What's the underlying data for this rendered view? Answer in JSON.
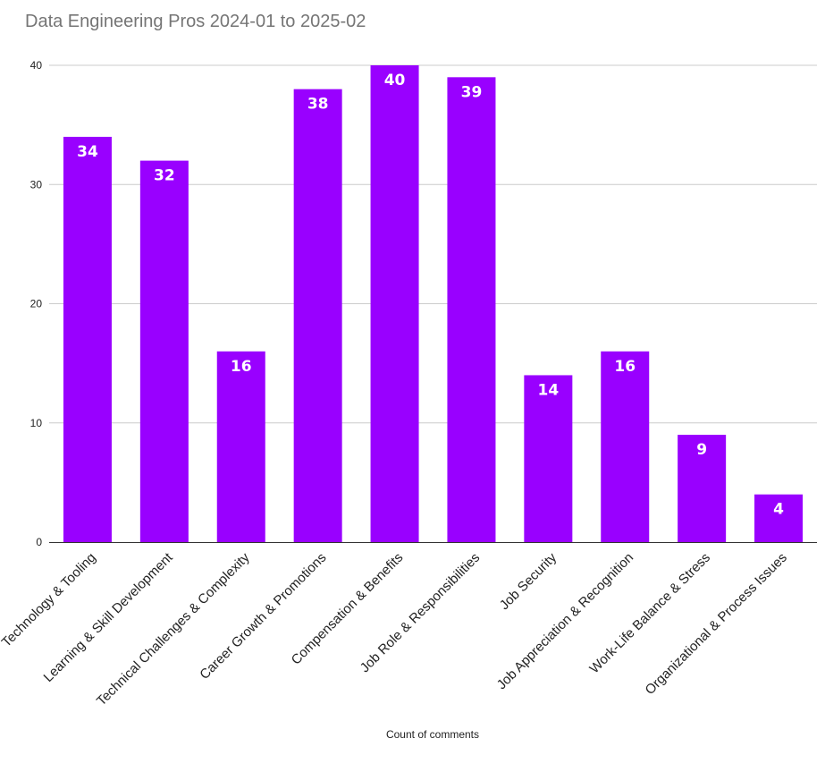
{
  "chart_data": {
    "type": "bar",
    "title": "Data Engineering Pros 2024-01 to 2025-02",
    "xlabel": "Count of comments",
    "ylabel": "",
    "ylim": [
      0,
      40
    ],
    "yticks": [
      0,
      10,
      20,
      30,
      40
    ],
    "grid": true,
    "legend": "none",
    "bar_color": "#9900ff",
    "categories": [
      "Technology & Tooling",
      "Learning & Skill Development",
      "Technical Challenges & Complexity",
      "Career Growth & Promotions",
      "Compensation & Benefits",
      "Job Role & Responsibilities",
      "Job Security",
      "Job Appreciation & Recognition",
      "Work-Life Balance & Stress",
      "Organizational & Process Issues"
    ],
    "values": [
      34,
      32,
      16,
      38,
      40,
      39,
      14,
      16,
      9,
      4
    ]
  }
}
